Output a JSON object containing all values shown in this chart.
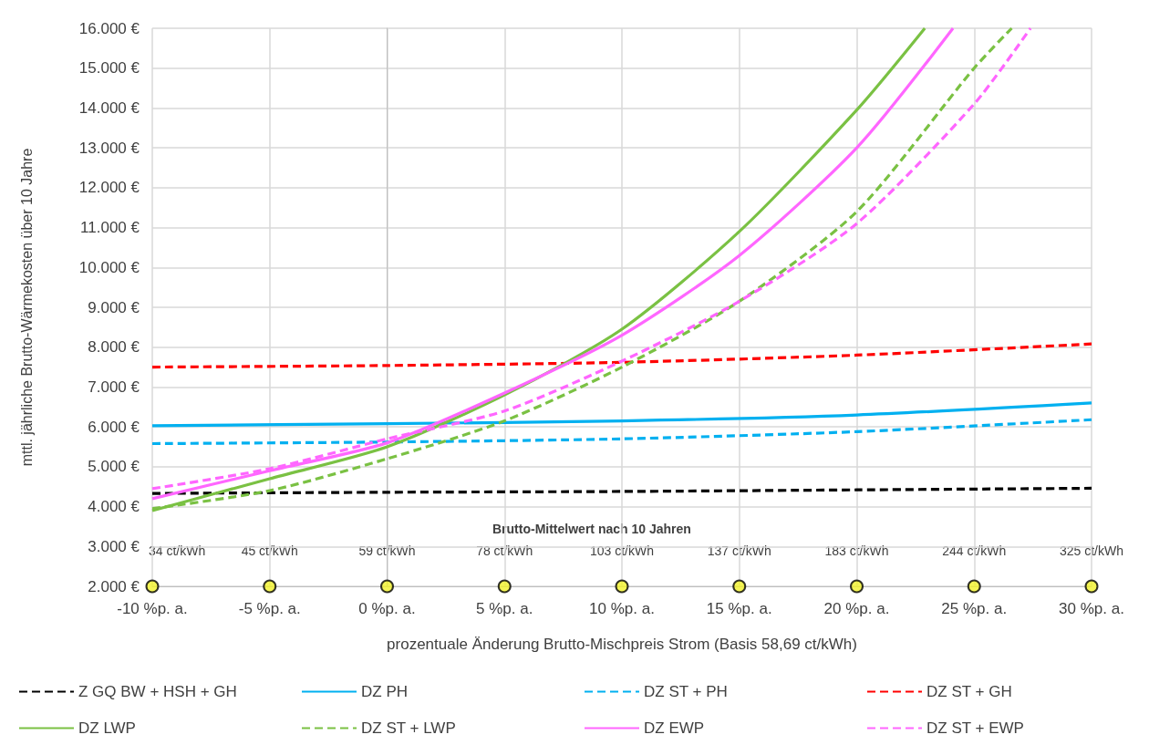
{
  "chart_data": {
    "type": "line",
    "xlabel": "prozentuale Änderung Brutto-Mischpreis Strom (Basis 58,69 ct/kWh)",
    "ylabel": "mttl. jährliche Brutto-Wärmekosten über 10 Jahre",
    "xlim": [
      -10,
      30
    ],
    "xticks": [
      {
        "value": -10,
        "label": "-10 %p. a."
      },
      {
        "value": -5,
        "label": "-5 %p. a."
      },
      {
        "value": 0,
        "label": "0 %p. a."
      },
      {
        "value": 5,
        "label": "5 %p. a."
      },
      {
        "value": 10,
        "label": "10 %p. a."
      },
      {
        "value": 15,
        "label": "15 %p. a."
      },
      {
        "value": 20,
        "label": "20 %p. a."
      },
      {
        "value": 25,
        "label": "25 %p. a."
      },
      {
        "value": 30,
        "label": "30 %p. a."
      }
    ],
    "ylim": [
      2000,
      16000
    ],
    "yticks": [
      {
        "value": 2000,
        "label": "2.000 €"
      },
      {
        "value": 3000,
        "label": "3.000 €"
      },
      {
        "value": 4000,
        "label": "4.000 €"
      },
      {
        "value": 5000,
        "label": "5.000 €"
      },
      {
        "value": 6000,
        "label": "6.000 €"
      },
      {
        "value": 7000,
        "label": "7.000 €"
      },
      {
        "value": 8000,
        "label": "8.000 €"
      },
      {
        "value": 9000,
        "label": "9.000 €"
      },
      {
        "value": 10000,
        "label": "10.000 €"
      },
      {
        "value": 11000,
        "label": "11.000 €"
      },
      {
        "value": 12000,
        "label": "12.000 €"
      },
      {
        "value": 13000,
        "label": "13.000 €"
      },
      {
        "value": 14000,
        "label": "14.000 €"
      },
      {
        "value": 15000,
        "label": "15.000 €"
      },
      {
        "value": 16000,
        "label": "16.000 €"
      }
    ],
    "grid": true,
    "legend": "bottom",
    "marker": "none",
    "annotations": [
      "Brutto-Mittelwert nach 10 Jahren",
      {
        "text": "34 ct/kWh",
        "x": -10,
        "y": 2000
      },
      {
        "text": "45 ct/kWh",
        "x": -5,
        "y": 2000
      },
      {
        "text": "59 ct/kWh",
        "x": 0,
        "y": 2000
      },
      {
        "text": "78 ct/kWh",
        "x": 5,
        "y": 2000
      },
      {
        "text": "103 ct/kWh",
        "x": 10,
        "y": 2000
      },
      {
        "text": "137 ct/kWh",
        "x": 15,
        "y": 2000
      },
      {
        "text": "183 ct/kWh",
        "x": 20,
        "y": 2000
      },
      {
        "text": "244 ct/kWh",
        "x": 25,
        "y": 2000
      },
      {
        "text": "325 ct/kWh",
        "x": 30,
        "y": 2000
      }
    ],
    "series": [
      {
        "name": "Z GQ BW + HSH + GH",
        "color": "#000000",
        "line_style": "dashed",
        "x": [
          -10,
          0,
          10,
          20,
          30
        ],
        "values": [
          4330,
          4360,
          4380,
          4420,
          4460
        ]
      },
      {
        "name": "DZ PH",
        "color": "#00b0f0",
        "line_style": "solid",
        "x": [
          -10,
          0,
          10,
          20,
          30
        ],
        "values": [
          6030,
          6080,
          6150,
          6300,
          6600
        ]
      },
      {
        "name": "DZ ST + PH",
        "color": "#00b0f0",
        "line_style": "dashed",
        "x": [
          -10,
          0,
          10,
          20,
          30
        ],
        "values": [
          5580,
          5620,
          5700,
          5880,
          6180
        ]
      },
      {
        "name": "DZ ST + GH",
        "color": "#ff0000",
        "line_style": "dashed",
        "x": [
          -10,
          0,
          10,
          20,
          30
        ],
        "values": [
          7500,
          7540,
          7620,
          7800,
          8080
        ]
      },
      {
        "name": "DZ LWP",
        "color": "#7ac143",
        "line_style": "solid",
        "x": [
          -10,
          -5,
          0,
          5,
          10,
          15,
          20,
          22.9
        ],
        "values": [
          3900,
          4700,
          5500,
          6800,
          8450,
          10900,
          13950,
          16000
        ]
      },
      {
        "name": "DZ ST + LWP",
        "color": "#7ac143",
        "line_style": "dashed",
        "x": [
          -10,
          -5,
          0,
          5,
          10,
          15,
          20,
          25,
          26.6
        ],
        "values": [
          3950,
          4400,
          5200,
          6150,
          7500,
          9150,
          11400,
          15000,
          16000
        ]
      },
      {
        "name": "DZ EWP",
        "color": "#ff66ff",
        "line_style": "solid",
        "x": [
          -10,
          -5,
          0,
          5,
          10,
          15,
          20,
          24.1
        ],
        "values": [
          4200,
          4900,
          5600,
          6850,
          8300,
          10300,
          13000,
          16000
        ]
      },
      {
        "name": "DZ ST + EWP",
        "color": "#ff66ff",
        "line_style": "dashed",
        "x": [
          -10,
          -5,
          0,
          5,
          10,
          15,
          20,
          25,
          27.4
        ],
        "values": [
          4450,
          4950,
          5700,
          6400,
          7650,
          9150,
          11100,
          14100,
          16000
        ]
      },
      {
        "type": "scatter",
        "marker": "circle",
        "color": "#f2f22a",
        "x": [
          -10,
          -5,
          0,
          5,
          10,
          15,
          20,
          25,
          30
        ],
        "values": [
          2000,
          2000,
          2000,
          2000,
          2000,
          2000,
          2000,
          2000,
          2000
        ]
      }
    ]
  }
}
